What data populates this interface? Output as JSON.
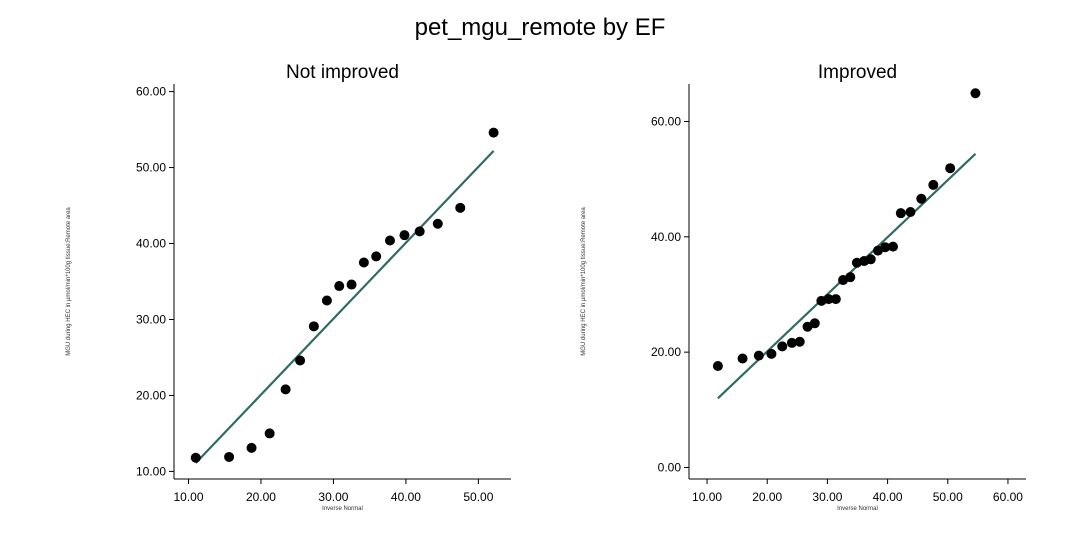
{
  "title": "pet_mgu_remote by EF",
  "chart_data": [
    {
      "type": "scatter",
      "title": "Not improved",
      "xlabel": "Inverse Normal",
      "ylabel": "MGU during HEC in µmol/min*100g tissue:Remote area",
      "xlim": [
        8,
        54.5
      ],
      "ylim": [
        9,
        61
      ],
      "xticks": [
        "10.00",
        "20.00",
        "30.00",
        "40.00",
        "50.00"
      ],
      "yticks": [
        "10.00",
        "20.00",
        "30.00",
        "40.00",
        "50.00",
        "60.00"
      ],
      "colors": {
        "points": "#000000",
        "line": "#2f6b64"
      },
      "points": [
        {
          "x": 11.0,
          "y": 11.8
        },
        {
          "x": 15.6,
          "y": 11.9
        },
        {
          "x": 18.7,
          "y": 13.1
        },
        {
          "x": 21.2,
          "y": 15.0
        },
        {
          "x": 23.4,
          "y": 20.8
        },
        {
          "x": 25.4,
          "y": 24.6
        },
        {
          "x": 27.3,
          "y": 29.1
        },
        {
          "x": 29.1,
          "y": 32.5
        },
        {
          "x": 30.8,
          "y": 34.4
        },
        {
          "x": 32.5,
          "y": 34.6
        },
        {
          "x": 34.2,
          "y": 37.5
        },
        {
          "x": 35.9,
          "y": 38.3
        },
        {
          "x": 37.8,
          "y": 40.4
        },
        {
          "x": 39.8,
          "y": 41.1
        },
        {
          "x": 41.9,
          "y": 41.6
        },
        {
          "x": 44.4,
          "y": 42.6
        },
        {
          "x": 47.5,
          "y": 44.7
        },
        {
          "x": 52.1,
          "y": 54.6
        }
      ],
      "fit_line": {
        "x": [
          11.0,
          52.1
        ],
        "y": [
          11.1,
          52.2
        ]
      }
    },
    {
      "type": "scatter",
      "title": "Improved",
      "xlabel": "Inverse Normal",
      "ylabel": "MGU during HEC in µmol/min*100g tissue:Remote area",
      "xlim": [
        7,
        63
      ],
      "ylim": [
        -2,
        66.5
      ],
      "xticks": [
        "10.00",
        "20.00",
        "30.00",
        "40.00",
        "50.00",
        "60.00"
      ],
      "yticks": [
        "0.00",
        "20.00",
        "40.00",
        "60.00"
      ],
      "colors": {
        "points": "#000000",
        "line": "#2f6b64"
      },
      "points": [
        {
          "x": 11.8,
          "y": 17.6
        },
        {
          "x": 15.9,
          "y": 18.9
        },
        {
          "x": 18.6,
          "y": 19.4
        },
        {
          "x": 20.7,
          "y": 19.7
        },
        {
          "x": 22.5,
          "y": 21.0
        },
        {
          "x": 24.1,
          "y": 21.6
        },
        {
          "x": 25.4,
          "y": 21.8
        },
        {
          "x": 26.7,
          "y": 24.4
        },
        {
          "x": 27.9,
          "y": 25.0
        },
        {
          "x": 29.0,
          "y": 28.9
        },
        {
          "x": 30.2,
          "y": 29.2
        },
        {
          "x": 31.4,
          "y": 29.2
        },
        {
          "x": 32.6,
          "y": 32.5
        },
        {
          "x": 33.8,
          "y": 33.0
        },
        {
          "x": 34.9,
          "y": 35.5
        },
        {
          "x": 36.1,
          "y": 35.8
        },
        {
          "x": 37.2,
          "y": 36.1
        },
        {
          "x": 38.4,
          "y": 37.6
        },
        {
          "x": 39.6,
          "y": 38.2
        },
        {
          "x": 40.9,
          "y": 38.3
        },
        {
          "x": 42.2,
          "y": 44.1
        },
        {
          "x": 43.8,
          "y": 44.3
        },
        {
          "x": 45.6,
          "y": 46.6
        },
        {
          "x": 47.6,
          "y": 49.0
        },
        {
          "x": 50.4,
          "y": 51.9
        },
        {
          "x": 54.6,
          "y": 64.9
        }
      ],
      "fit_line": {
        "x": [
          11.8,
          54.6
        ],
        "y": [
          12.0,
          54.4
        ]
      }
    }
  ]
}
